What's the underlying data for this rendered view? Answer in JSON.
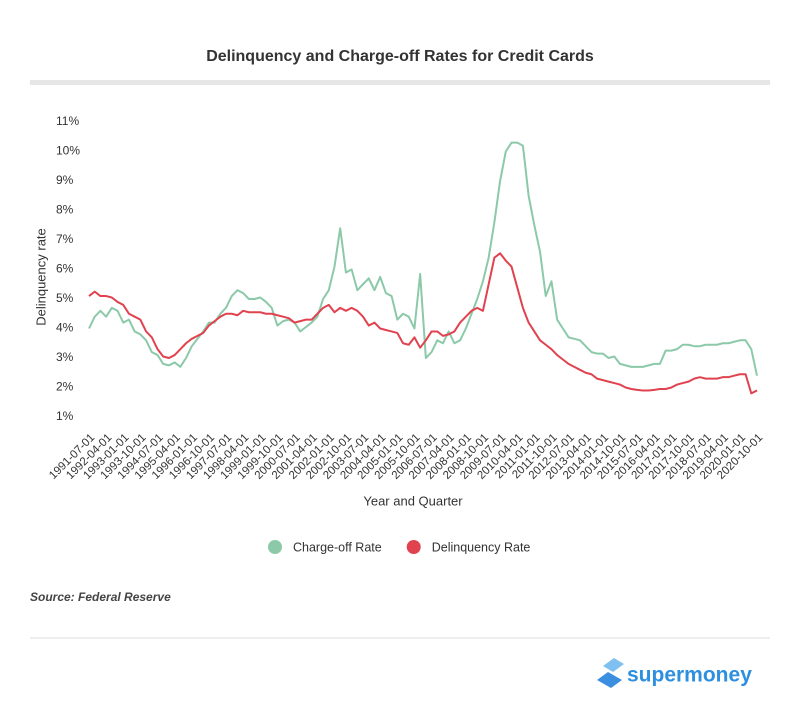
{
  "chart_data": {
    "type": "line",
    "title": "Delinquency and Charge-off Rates for Credit Cards",
    "y_label": "Delinquency rate",
    "x_label": "Year and Quarter",
    "source": "Source: Federal Reserve",
    "brand": "supermoney",
    "categories": [
      "1991-07-01",
      null,
      null,
      "1992-04-01",
      null,
      null,
      "1993-01-01",
      null,
      null,
      "1993-10-01",
      null,
      null,
      "1994-07-01",
      null,
      null,
      "1995-04-01",
      null,
      null,
      "1996-01-01",
      null,
      null,
      "1996-10-01",
      null,
      null,
      "1997-07-01",
      null,
      null,
      "1998-04-01",
      null,
      null,
      "1999-01-01",
      null,
      null,
      "1999-10-01",
      null,
      null,
      "2000-07-01",
      null,
      null,
      "2001-04-01",
      null,
      null,
      "2002-01-01",
      null,
      null,
      "2002-10-01",
      null,
      null,
      "2003-07-01",
      null,
      null,
      "2004-04-01",
      null,
      null,
      "2005-01-01",
      null,
      null,
      "2005-10-01",
      null,
      null,
      "2006-07-01",
      null,
      null,
      "2007-04-01",
      null,
      null,
      "2008-01-01",
      null,
      null,
      "2008-10-01",
      null,
      null,
      "2009-07-01",
      null,
      null,
      "2010-04-01",
      null,
      null,
      "2011-01-01",
      null,
      null,
      "2011-10-01",
      null,
      null,
      "2012-07-01",
      null,
      null,
      "2013-04-01",
      null,
      null,
      "2014-01-01",
      null,
      null,
      "2014-10-01",
      null,
      null,
      "2015-07-01",
      null,
      null,
      "2016-04-01",
      null,
      null,
      "2017-01-01",
      null,
      null,
      "2017-10-01",
      null,
      null,
      "2018-07-01",
      null,
      null,
      "2019-04-01",
      null,
      null,
      "2020-01-01",
      null,
      null,
      "2020-10-01"
    ],
    "series": [
      {
        "name": "Charge-off Rate",
        "color": "#8cc9a8",
        "values": [
          4.0,
          4.4,
          4.6,
          4.4,
          4.7,
          4.6,
          4.2,
          4.3,
          3.9,
          3.8,
          3.6,
          3.2,
          3.1,
          2.8,
          2.75,
          2.85,
          2.7,
          3.0,
          3.4,
          3.65,
          3.9,
          4.2,
          4.2,
          4.5,
          4.7,
          5.1,
          5.3,
          5.2,
          5.0,
          5.0,
          5.05,
          4.9,
          4.7,
          4.1,
          4.25,
          4.3,
          4.2,
          3.9,
          4.05,
          4.2,
          4.4,
          5.0,
          5.3,
          6.1,
          7.4,
          5.9,
          6.0,
          5.3,
          5.5,
          5.7,
          5.3,
          5.75,
          5.2,
          5.1,
          4.3,
          4.5,
          4.4,
          4.0,
          5.85,
          3.0,
          3.2,
          3.6,
          3.5,
          3.9,
          3.5,
          3.6,
          4.0,
          4.5,
          5.0,
          5.6,
          6.4,
          7.6,
          9.0,
          10.0,
          10.3,
          10.3,
          10.2,
          8.5,
          7.5,
          6.6,
          5.1,
          5.6,
          4.3,
          4.0,
          3.7,
          3.65,
          3.6,
          3.4,
          3.2,
          3.15,
          3.15,
          3.0,
          3.05,
          2.8,
          2.75,
          2.7,
          2.7,
          2.7,
          2.75,
          2.8,
          2.8,
          3.25,
          3.25,
          3.3,
          3.45,
          3.45,
          3.4,
          3.4,
          3.45,
          3.45,
          3.45,
          3.5,
          3.5,
          3.55,
          3.6,
          3.6,
          3.3,
          2.4
        ]
      },
      {
        "name": "Delinquency Rate",
        "color": "#e0434f",
        "values": [
          5.1,
          5.25,
          5.1,
          5.1,
          5.05,
          4.9,
          4.8,
          4.5,
          4.4,
          4.3,
          3.9,
          3.7,
          3.3,
          3.05,
          3.0,
          3.1,
          3.3,
          3.5,
          3.65,
          3.75,
          3.85,
          4.1,
          4.25,
          4.4,
          4.5,
          4.5,
          4.45,
          4.6,
          4.55,
          4.55,
          4.55,
          4.5,
          4.5,
          4.45,
          4.4,
          4.35,
          4.2,
          4.25,
          4.3,
          4.3,
          4.5,
          4.7,
          4.8,
          4.55,
          4.7,
          4.6,
          4.7,
          4.6,
          4.4,
          4.1,
          4.2,
          4.0,
          3.95,
          3.9,
          3.85,
          3.5,
          3.45,
          3.7,
          3.35,
          3.6,
          3.9,
          3.9,
          3.75,
          3.8,
          3.9,
          4.2,
          4.4,
          4.6,
          4.7,
          4.6,
          5.5,
          6.4,
          6.55,
          6.3,
          6.1,
          5.4,
          4.7,
          4.2,
          3.9,
          3.6,
          3.45,
          3.3,
          3.1,
          2.95,
          2.8,
          2.7,
          2.6,
          2.5,
          2.45,
          2.3,
          2.25,
          2.2,
          2.15,
          2.1,
          2.0,
          1.95,
          1.92,
          1.9,
          1.9,
          1.92,
          1.95,
          1.95,
          2.0,
          2.1,
          2.15,
          2.2,
          2.3,
          2.35,
          2.3,
          2.3,
          2.3,
          2.35,
          2.35,
          2.4,
          2.45,
          2.45,
          1.8,
          1.9
        ]
      }
    ],
    "ylim": [
      1,
      11
    ],
    "yticks": [
      {
        "value": 1,
        "label": "1%"
      },
      {
        "value": 2,
        "label": "2%"
      },
      {
        "value": 3,
        "label": "3%"
      },
      {
        "value": 4,
        "label": "4%"
      },
      {
        "value": 5,
        "label": "5%"
      },
      {
        "value": 6,
        "label": "6%"
      },
      {
        "value": 7,
        "label": "7%"
      },
      {
        "value": 8,
        "label": "8%"
      },
      {
        "value": 9,
        "label": "9%"
      },
      {
        "value": 10,
        "label": "10%"
      },
      {
        "value": 11,
        "label": "11%"
      }
    ],
    "grid": false
  }
}
